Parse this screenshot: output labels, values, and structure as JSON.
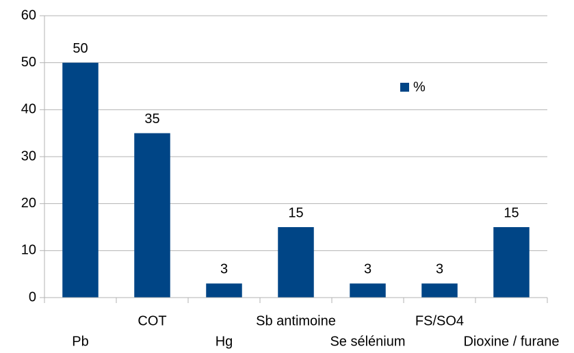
{
  "chart_data": {
    "type": "bar",
    "categories": [
      "Pb",
      "COT",
      "Hg",
      "Sb antimoine",
      "Se sélénium",
      "FS/SO4",
      "Dioxine / furane"
    ],
    "series": [
      {
        "name": "%",
        "color": "#004586",
        "values": [
          50,
          35,
          3,
          15,
          3,
          3,
          15
        ]
      }
    ],
    "ylim": [
      0,
      60
    ],
    "yticks": [
      0,
      10,
      20,
      30,
      40,
      50,
      60
    ],
    "grid": true,
    "legend": "upper right"
  }
}
